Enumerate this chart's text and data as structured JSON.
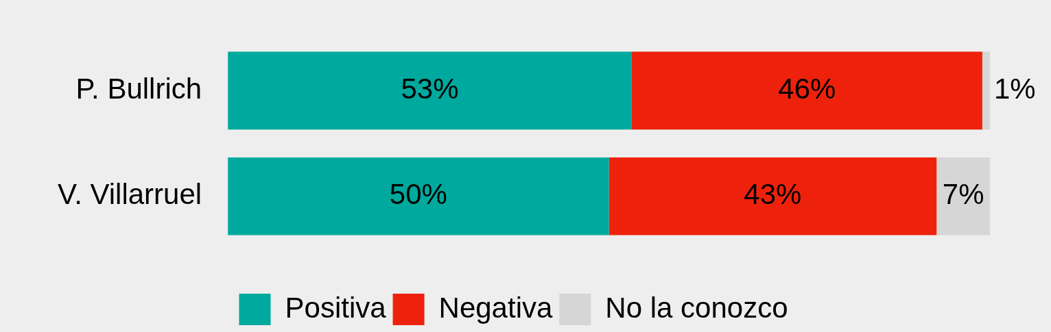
{
  "chart_data": {
    "type": "bar",
    "orientation": "horizontal",
    "stacked": true,
    "categories": [
      "P. Bullrich",
      "V. Villarruel"
    ],
    "xlim": [
      0,
      100
    ],
    "tick_labels": "y",
    "legend": "bottom",
    "series": [
      {
        "name": "Positiva",
        "color": "#00a99d",
        "values": [
          53,
          50
        ],
        "value_labels": [
          "53%",
          "50%"
        ]
      },
      {
        "name": "Negativa",
        "color": "#ee220c",
        "values": [
          46,
          43
        ],
        "value_labels": [
          "46%",
          "43%"
        ]
      },
      {
        "name": "No la conozco",
        "color": "#d6d6d6",
        "values": [
          1,
          7
        ],
        "value_labels": [
          "1%",
          "7%"
        ]
      }
    ]
  }
}
